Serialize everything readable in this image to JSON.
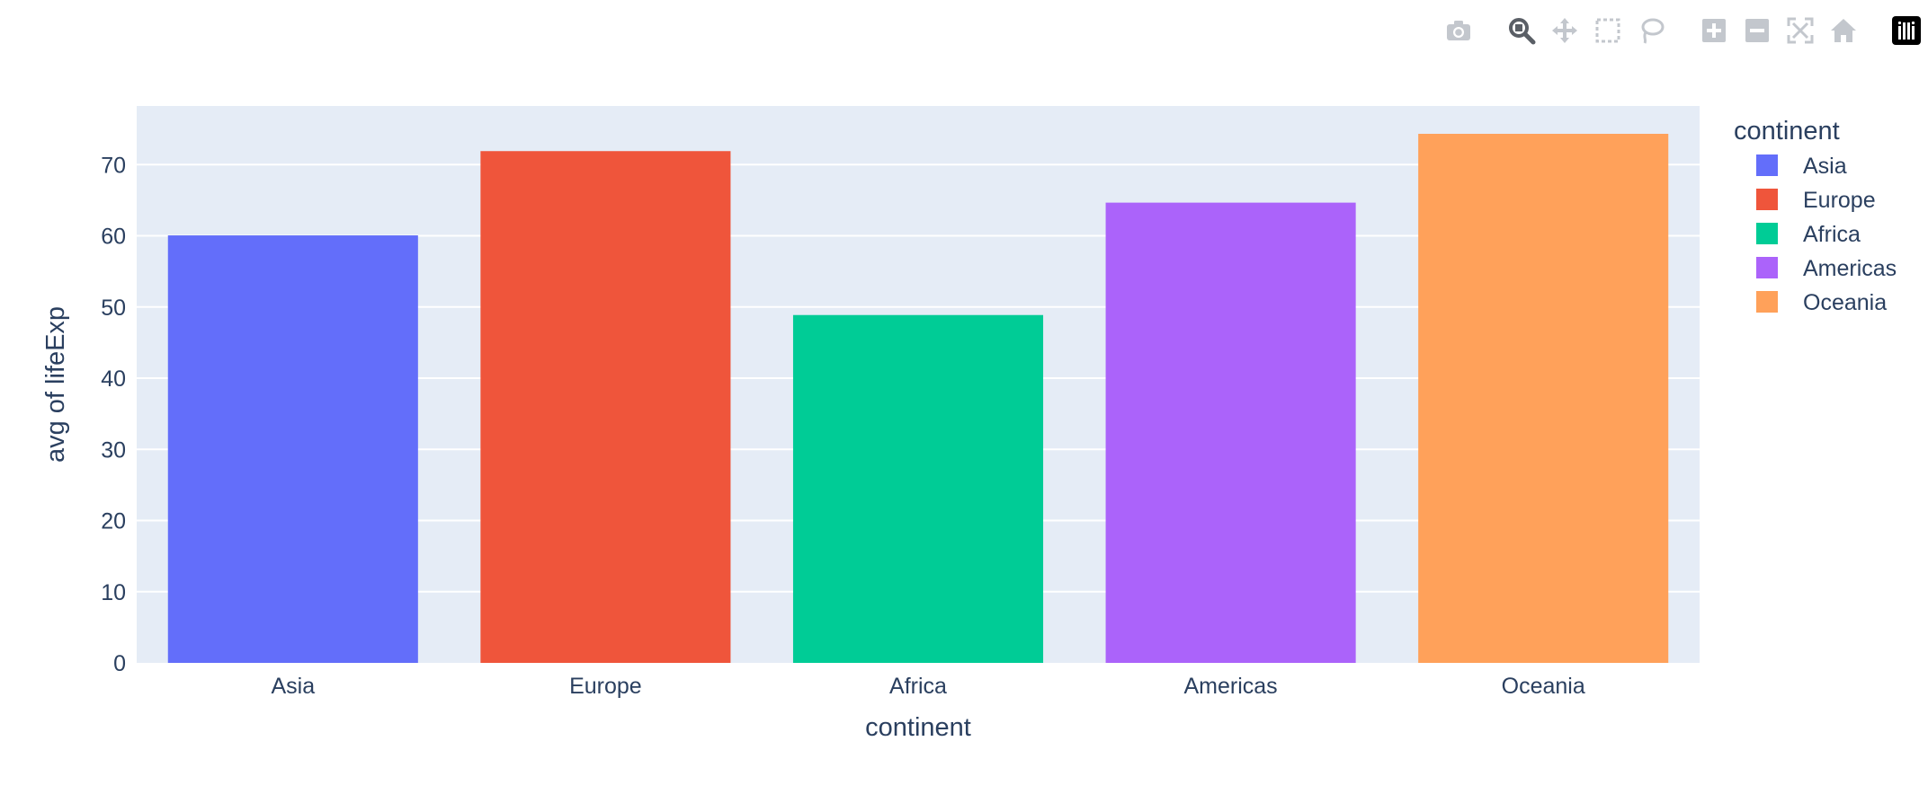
{
  "modebar": {
    "buttons": [
      {
        "name": "download-plot-button",
        "icon": "camera-icon",
        "group": 0,
        "active": false
      },
      {
        "name": "zoom-button",
        "icon": "zoom-icon",
        "group": 1,
        "active": true
      },
      {
        "name": "pan-button",
        "icon": "pan-icon",
        "group": 1,
        "active": false
      },
      {
        "name": "box-select-button",
        "icon": "box-select-icon",
        "group": 1,
        "active": false
      },
      {
        "name": "lasso-select-button",
        "icon": "lasso-icon",
        "group": 1,
        "active": false
      },
      {
        "name": "zoom-in-button",
        "icon": "zoom-in-icon",
        "group": 2,
        "active": false
      },
      {
        "name": "zoom-out-button",
        "icon": "zoom-out-icon",
        "group": 2,
        "active": false
      },
      {
        "name": "autoscale-button",
        "icon": "autoscale-icon",
        "group": 2,
        "active": false
      },
      {
        "name": "reset-axes-button",
        "icon": "home-icon",
        "group": 2,
        "active": false
      },
      {
        "name": "plotly-logo-link",
        "icon": "plotly-logo-icon",
        "group": 3,
        "active": false
      }
    ],
    "colors": {
      "inactive": "#c3c7cd",
      "active": "#5a5f66",
      "logo_bg": "#000000",
      "logo_fg": "#ffffff"
    }
  },
  "chart_data": {
    "type": "bar",
    "categories": [
      "Asia",
      "Europe",
      "Africa",
      "Americas",
      "Oceania"
    ],
    "values": [
      60.06,
      71.9,
      48.87,
      64.66,
      74.33
    ],
    "colors": [
      "#636efa",
      "#EF553B",
      "#00cc96",
      "#ab63fa",
      "#FFA15A"
    ],
    "xlabel": "continent",
    "ylabel": "avg of lifeExp",
    "ylim": [
      0,
      78.24
    ],
    "yticks": [
      0,
      10,
      20,
      30,
      40,
      50,
      60,
      70
    ],
    "grid": true,
    "plot_bgcolor": "#E5ECF6",
    "gridcolor": "#ffffff",
    "legend": {
      "title": "continent",
      "placement": "right",
      "items": [
        "Asia",
        "Europe",
        "Africa",
        "Americas",
        "Oceania"
      ]
    }
  }
}
